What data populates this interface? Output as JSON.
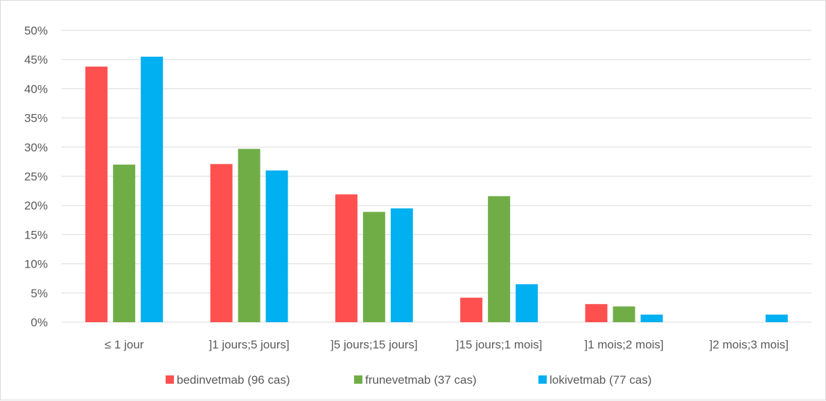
{
  "chart_data": {
    "type": "bar",
    "title": "",
    "xlabel": "",
    "ylabel": "",
    "ylim": [
      0,
      50
    ],
    "y_tick_format": "percent",
    "y_ticks": [
      "0%",
      "5%",
      "10%",
      "15%",
      "20%",
      "25%",
      "30%",
      "35%",
      "40%",
      "45%",
      "50%"
    ],
    "grid": true,
    "legend_position": "bottom",
    "categories": [
      "≤ 1 jour",
      "]1 jours;5 jours]",
      "]5 jours;15 jours]",
      "]15 jours;1 mois]",
      "]1 mois;2 mois]",
      "]2 mois;3 mois]"
    ],
    "series": [
      {
        "name": "bedinvetmab (96 cas)",
        "color": "#FF5050",
        "values": [
          43.8,
          27.1,
          21.9,
          4.2,
          3.1,
          0
        ]
      },
      {
        "name": "frunevetmab (37 cas)",
        "color": "#70AD47",
        "values": [
          27.0,
          29.7,
          18.9,
          21.6,
          2.7,
          0
        ]
      },
      {
        "name": "lokivetmab (77 cas)",
        "color": "#00B0F0",
        "values": [
          45.5,
          26.0,
          19.5,
          6.5,
          1.3,
          1.3
        ]
      }
    ]
  }
}
